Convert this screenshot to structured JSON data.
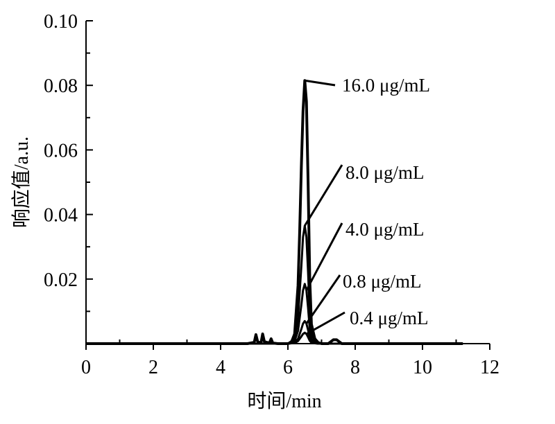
{
  "chart_data": {
    "type": "line",
    "title": "",
    "xlabel": "时间/min",
    "ylabel": "响应值/a.u.",
    "xlim": [
      0,
      12
    ],
    "ylim": [
      0,
      0.1
    ],
    "xticks": [
      "0",
      "2",
      "4",
      "6",
      "8",
      "10",
      "12"
    ],
    "yticks": [
      "0.02",
      "0.04",
      "0.06",
      "0.08",
      "0.10"
    ],
    "grid": false,
    "legend": "none",
    "series": [
      {
        "name": "16.0 μg/mL",
        "x": [
          0,
          4.8,
          5.0,
          5.05,
          5.1,
          5.2,
          5.25,
          5.3,
          5.45,
          5.5,
          5.55,
          5.7,
          6.0,
          6.1,
          6.2,
          6.3,
          6.35,
          6.4,
          6.45,
          6.5,
          6.55,
          6.6,
          6.65,
          6.7,
          6.8,
          6.9,
          7.0,
          7.2,
          7.35,
          7.45,
          7.6,
          8.0,
          11.2
        ],
        "y": [
          0,
          0,
          0.0004,
          0.0028,
          0.0006,
          0.0002,
          0.003,
          0.0006,
          0.0002,
          0.0015,
          0.0002,
          0,
          0,
          0.0003,
          0.003,
          0.018,
          0.035,
          0.055,
          0.072,
          0.0815,
          0.075,
          0.05,
          0.02,
          0.006,
          0.0015,
          0.0003,
          0,
          0,
          0.0012,
          0.0012,
          0,
          0,
          0
        ]
      },
      {
        "name": "8.0 μg/mL",
        "x": [
          0,
          6.0,
          6.2,
          6.3,
          6.4,
          6.45,
          6.5,
          6.55,
          6.6,
          6.65,
          6.7,
          6.8,
          6.9,
          7.0,
          11.0
        ],
        "y": [
          0,
          0,
          0.0015,
          0.008,
          0.024,
          0.033,
          0.0365,
          0.033,
          0.022,
          0.009,
          0.003,
          0.0008,
          0.0002,
          0,
          0
        ]
      },
      {
        "name": "4.0 μg/mL",
        "x": [
          0,
          6.0,
          6.2,
          6.3,
          6.4,
          6.45,
          6.5,
          6.55,
          6.6,
          6.65,
          6.7,
          6.8,
          6.9,
          7.0,
          11.0
        ],
        "y": [
          0,
          0,
          0.0008,
          0.004,
          0.012,
          0.0165,
          0.0185,
          0.0165,
          0.011,
          0.0045,
          0.0015,
          0.0004,
          0.0001,
          0,
          0
        ]
      },
      {
        "name": "0.8 μg/mL",
        "x": [
          0,
          6.0,
          6.2,
          6.3,
          6.4,
          6.45,
          6.5,
          6.55,
          6.6,
          6.65,
          6.7,
          6.8,
          6.9,
          7.0,
          11.0
        ],
        "y": [
          0,
          0,
          0.0003,
          0.0015,
          0.0045,
          0.0062,
          0.007,
          0.0062,
          0.0042,
          0.0018,
          0.0006,
          0.0002,
          0,
          0,
          0
        ]
      },
      {
        "name": "0.4 μg/mL",
        "x": [
          0,
          6.0,
          6.2,
          6.3,
          6.4,
          6.45,
          6.5,
          6.55,
          6.6,
          6.65,
          6.7,
          6.8,
          6.9,
          7.0,
          11.0
        ],
        "y": [
          0,
          0,
          0.0002,
          0.0008,
          0.0022,
          0.003,
          0.0034,
          0.003,
          0.002,
          0.0009,
          0.0003,
          0.0001,
          0,
          0,
          0
        ]
      }
    ],
    "annotations": [
      {
        "text": "16.0 μg/mL",
        "series": "16.0 μg/mL",
        "point": [
          6.5,
          0.0815
        ]
      },
      {
        "text": "8.0 μg/mL",
        "series": "8.0 μg/mL",
        "point": [
          6.5,
          0.0365
        ]
      },
      {
        "text": "4.0 μg/mL",
        "series": "4.0 μg/mL",
        "point": [
          6.55,
          0.0165
        ]
      },
      {
        "text": "0.8 μg/mL",
        "series": "0.8 μg/mL",
        "point": [
          6.55,
          0.0062
        ]
      },
      {
        "text": "0.4 μg/mL",
        "series": "0.4 μg/mL",
        "point": [
          6.55,
          0.003
        ]
      }
    ]
  }
}
